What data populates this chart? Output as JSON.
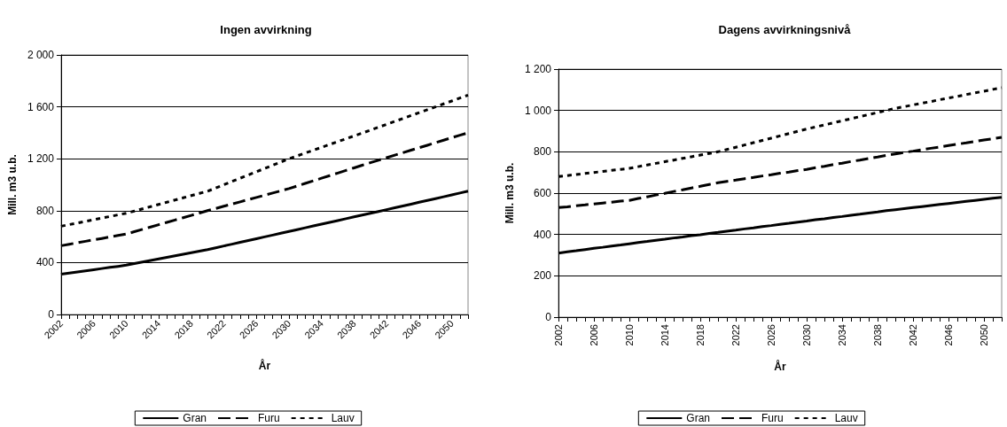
{
  "chart_data": [
    {
      "type": "line",
      "title": "Ingen avvirkning",
      "xlabel": "År",
      "ylabel": "Mill. m3 u.b.",
      "categories": [
        "2002",
        null,
        null,
        null,
        "2006",
        null,
        null,
        null,
        "2010",
        null,
        null,
        null,
        "2014",
        null,
        null,
        null,
        "2018",
        null,
        null,
        null,
        "2022",
        null,
        null,
        null,
        "2026",
        null,
        null,
        null,
        "2030",
        null,
        null,
        null,
        "2034",
        null,
        null,
        null,
        "2038",
        null,
        null,
        null,
        "2042",
        null,
        null,
        null,
        "2046",
        null,
        null,
        null,
        "2050",
        null,
        null
      ],
      "series": [
        {
          "name": "Gran",
          "color": "#000000",
          "line_style": "solid",
          "values": [
            310,
            319,
            328,
            336,
            345,
            354,
            363,
            371,
            380,
            392,
            404,
            416,
            428,
            440,
            452,
            464,
            476,
            488,
            500,
            514,
            528,
            542,
            556,
            570,
            584,
            598,
            612,
            626,
            640,
            654,
            668,
            682,
            696,
            710,
            724,
            738,
            752,
            766,
            780,
            794,
            808,
            822,
            836,
            850,
            865,
            879,
            893,
            907,
            921,
            936,
            950
          ]
        },
        {
          "name": "Furu",
          "color": "#000000",
          "line_style": "dashed",
          "values": [
            530,
            541,
            553,
            564,
            575,
            586,
            598,
            609,
            620,
            638,
            656,
            674,
            692,
            710,
            728,
            746,
            764,
            782,
            800,
            817,
            834,
            851,
            868,
            885,
            902,
            919,
            936,
            953,
            970,
            990,
            1010,
            1030,
            1050,
            1070,
            1090,
            1110,
            1130,
            1150,
            1170,
            1189,
            1208,
            1228,
            1247,
            1266,
            1285,
            1304,
            1324,
            1343,
            1362,
            1381,
            1400
          ]
        },
        {
          "name": "Lauv",
          "color": "#000000",
          "line_style": "dotted",
          "values": [
            680,
            693,
            705,
            718,
            730,
            743,
            755,
            768,
            780,
            797,
            814,
            831,
            848,
            865,
            882,
            899,
            916,
            933,
            950,
            975,
            1000,
            1025,
            1050,
            1075,
            1100,
            1125,
            1150,
            1175,
            1200,
            1222,
            1244,
            1266,
            1288,
            1310,
            1332,
            1354,
            1376,
            1398,
            1420,
            1443,
            1465,
            1488,
            1510,
            1533,
            1555,
            1578,
            1600,
            1623,
            1645,
            1668,
            1690
          ]
        }
      ],
      "ylim": [
        0,
        2000
      ],
      "yticks": [
        0,
        400,
        800,
        {
          "value": 1200,
          "label": "1 200"
        },
        {
          "value": 1600,
          "label": "1 600"
        },
        {
          "value": 2000,
          "label": "2 000"
        }
      ],
      "grid": "y",
      "legend": "bottom",
      "marker": "none"
    },
    {
      "type": "line",
      "title": "Dagens avvirkningsnivå",
      "xlabel": "År",
      "ylabel": "Mill. m3 u.b.",
      "categories": [
        "2002",
        null,
        null,
        null,
        "2006",
        null,
        null,
        null,
        "2010",
        null,
        null,
        null,
        "2014",
        null,
        null,
        null,
        "2018",
        null,
        null,
        null,
        "2022",
        null,
        null,
        null,
        "2026",
        null,
        null,
        null,
        "2030",
        null,
        null,
        null,
        "2034",
        null,
        null,
        null,
        "2038",
        null,
        null,
        null,
        "2042",
        null,
        null,
        null,
        "2046",
        null,
        null,
        null,
        "2050",
        null,
        null
      ],
      "series": [
        {
          "name": "Gran",
          "color": "#000000",
          "line_style": "solid",
          "values": [
            310,
            316,
            321,
            327,
            333,
            338,
            344,
            349,
            355,
            361,
            366,
            372,
            377,
            383,
            388,
            394,
            399,
            405,
            410,
            416,
            421,
            427,
            432,
            438,
            443,
            449,
            454,
            460,
            465,
            471,
            476,
            482,
            487,
            493,
            498,
            504,
            509,
            515,
            520,
            525,
            530,
            535,
            540,
            545,
            550,
            555,
            560,
            565,
            570,
            575,
            580
          ]
        },
        {
          "name": "Furu",
          "color": "#000000",
          "line_style": "dashed",
          "values": [
            530,
            534,
            539,
            543,
            548,
            552,
            556,
            561,
            565,
            574,
            582,
            591,
            599,
            608,
            616,
            625,
            633,
            642,
            650,
            657,
            663,
            670,
            676,
            683,
            689,
            696,
            702,
            709,
            715,
            723,
            730,
            738,
            745,
            753,
            760,
            768,
            775,
            783,
            790,
            797,
            803,
            810,
            817,
            823,
            830,
            837,
            843,
            850,
            857,
            863,
            870
          ]
        },
        {
          "name": "Lauv",
          "color": "#000000",
          "line_style": "dotted",
          "values": [
            680,
            685,
            690,
            695,
            700,
            705,
            710,
            715,
            720,
            728,
            736,
            744,
            752,
            760,
            768,
            776,
            784,
            792,
            800,
            811,
            822,
            833,
            844,
            855,
            866,
            877,
            888,
            899,
            910,
            920,
            930,
            940,
            950,
            960,
            970,
            980,
            990,
            1000,
            1010,
            1018,
            1027,
            1035,
            1043,
            1052,
            1060,
            1068,
            1077,
            1085,
            1093,
            1102,
            1110
          ]
        }
      ],
      "ylim": [
        0,
        1200
      ],
      "yticks": [
        0,
        200,
        400,
        600,
        800,
        {
          "value": 1000,
          "label": "1 000"
        },
        {
          "value": 1200,
          "label": "1 200"
        }
      ],
      "grid": "y",
      "legend": "bottom",
      "marker": "none"
    }
  ]
}
